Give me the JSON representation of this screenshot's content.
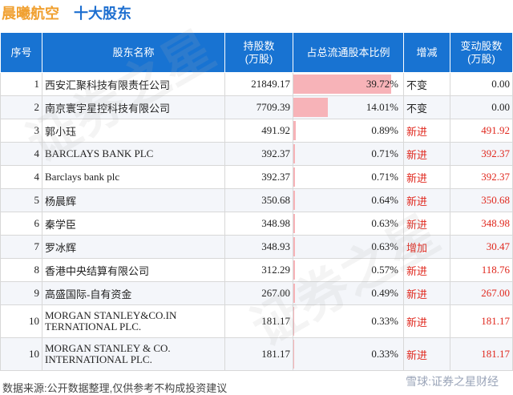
{
  "title": {
    "company": "晨曦航空",
    "section": "十大股东"
  },
  "table": {
    "headers": {
      "rank": "序号",
      "name": "股东名称",
      "shares_line1": "持股数",
      "shares_line2": "(万股)",
      "ratio": "占总流通股本比例",
      "change": "增减",
      "change_shares_line1": "变动股数",
      "change_shares_line2": "(万股)"
    },
    "rows": [
      {
        "rank": "1",
        "name": "西安汇聚科技有限责任公司",
        "shares": "21849.17",
        "ratio": "39.72%",
        "ratio_value": 0.3972,
        "change": "不变",
        "change_shares": "0.00"
      },
      {
        "rank": "2",
        "name": "南京寰宇星控科技有限公司",
        "shares": "7709.39",
        "ratio": "14.01%",
        "ratio_value": 0.1401,
        "change": "不变",
        "change_shares": "0.00"
      },
      {
        "rank": "3",
        "name": "郭小珏",
        "shares": "491.92",
        "ratio": "0.89%",
        "ratio_value": 0.0089,
        "change": "新进",
        "change_shares": "491.92"
      },
      {
        "rank": "4",
        "name": "BARCLAYS BANK PLC",
        "shares": "392.37",
        "ratio": "0.71%",
        "ratio_value": 0.0071,
        "change": "新进",
        "change_shares": "392.37"
      },
      {
        "rank": "4",
        "name": "Barclays bank plc",
        "shares": "392.37",
        "ratio": "0.71%",
        "ratio_value": 0.0071,
        "change": "新进",
        "change_shares": "392.37"
      },
      {
        "rank": "5",
        "name": "杨晨辉",
        "shares": "350.68",
        "ratio": "0.64%",
        "ratio_value": 0.0064,
        "change": "新进",
        "change_shares": "350.68"
      },
      {
        "rank": "6",
        "name": "秦学臣",
        "shares": "348.98",
        "ratio": "0.63%",
        "ratio_value": 0.0063,
        "change": "新进",
        "change_shares": "348.98"
      },
      {
        "rank": "7",
        "name": "罗冰辉",
        "shares": "348.93",
        "ratio": "0.63%",
        "ratio_value": 0.0063,
        "change": "增加",
        "change_shares": "30.47"
      },
      {
        "rank": "8",
        "name": "香港中央结算有限公司",
        "shares": "312.29",
        "ratio": "0.57%",
        "ratio_value": 0.0057,
        "change": "新进",
        "change_shares": "118.76"
      },
      {
        "rank": "9",
        "name": "高盛国际-自有资金",
        "shares": "267.00",
        "ratio": "0.49%",
        "ratio_value": 0.0049,
        "change": "新进",
        "change_shares": "267.00"
      },
      {
        "rank": "10",
        "name_line1": "MORGAN STANLEY&CO.IN",
        "name_line2": "TERNATIONAL PLC.",
        "shares": "181.17",
        "ratio": "0.33%",
        "ratio_value": 0.0033,
        "change": "新进",
        "change_shares": "181.17"
      },
      {
        "rank": "10",
        "name_line1": "MORGAN STANLEY & CO.",
        "name_line2": "INTERNATIONAL PLC.",
        "shares": "181.17",
        "ratio": "0.33%",
        "ratio_value": 0.0033,
        "change": "新进",
        "change_shares": "181.17"
      }
    ]
  },
  "footer": {
    "source": "数据来源:公开数据整理,仅供参考不构成投资建议",
    "brand": "雪球:证券之星财经"
  },
  "watermark_text": "证券之星",
  "colors": {
    "header_bg": "#1873d2",
    "title_orange": "#f0a030",
    "title_blue": "#1e6fd0",
    "ratio_bar": "#f7b3b8",
    "change_red": "#e0281e"
  }
}
